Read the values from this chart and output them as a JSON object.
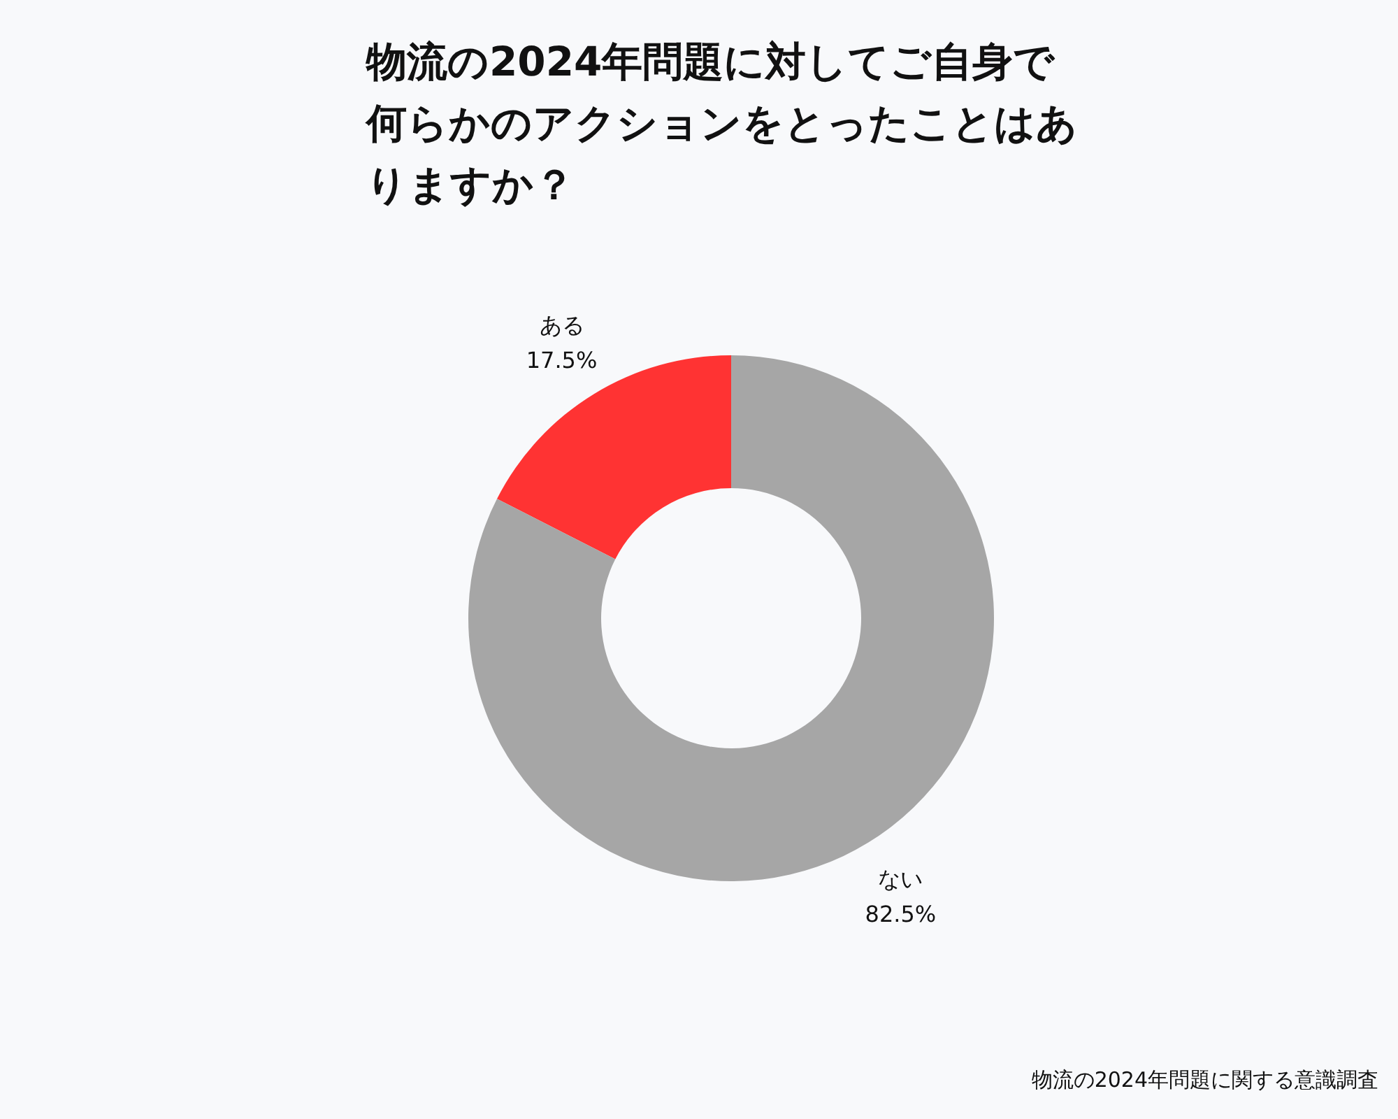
{
  "chart_data": {
    "type": "donut",
    "title": "物流の2024年問題に対してご自身で何らかのアクションをとったことはありますか？",
    "categories": [
      "ある",
      "ない"
    ],
    "values": [
      17.5,
      82.5
    ],
    "value_labels": [
      "17.5%",
      "82.5%"
    ],
    "colors": [
      "#ff3333",
      "#a6a6a6"
    ],
    "annotations": [
      "物流の2024年問題に関する意識調査"
    ]
  }
}
